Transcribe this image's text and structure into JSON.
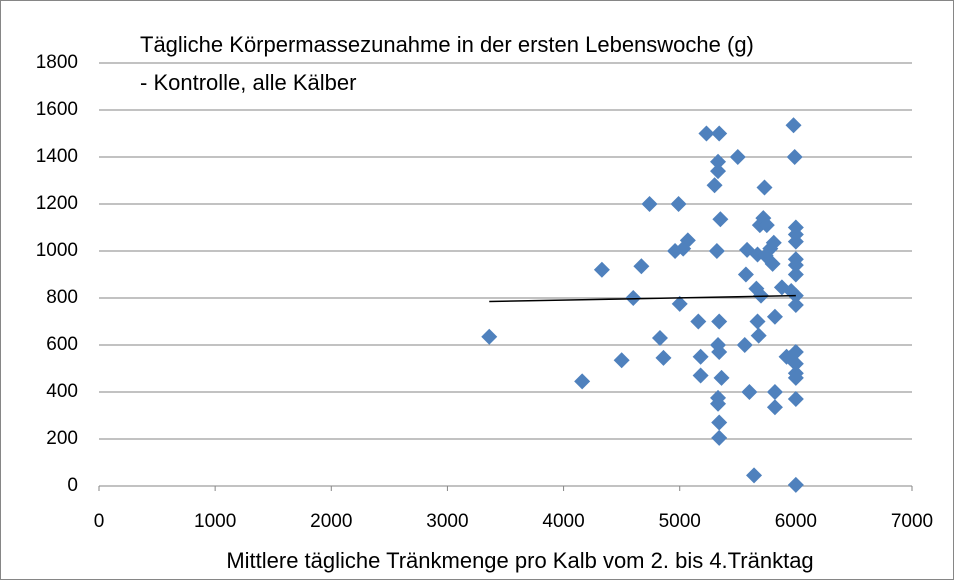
{
  "chart_data": {
    "type": "scatter",
    "title": "Tägliche Körpermassezunahme in der ersten Lebenswoche (g)",
    "subtitle": "- Kontrolle, alle Kälber",
    "x_label": "Mittlere tägliche Tränkmenge  pro Kalb vom 2. bis 4.Tränktag",
    "xlim": [
      0,
      7000
    ],
    "xticks": [
      0,
      1000,
      2000,
      3000,
      4000,
      5000,
      6000,
      7000
    ],
    "ylim": [
      0,
      1800
    ],
    "yticks": [
      0,
      200,
      400,
      600,
      800,
      1000,
      1200,
      1400,
      1600,
      1800
    ],
    "grid": true,
    "series": [
      {
        "color": "#4f81bd",
        "x": [
          3360,
          4160,
          4330,
          4500,
          4600,
          4670,
          4740,
          4830,
          4860,
          4960,
          4990,
          5000,
          5030,
          5070,
          5160,
          5180,
          5180,
          5230,
          5300,
          5320,
          5330,
          5330,
          5340,
          5350,
          5340,
          5330,
          5340,
          5330,
          5330,
          5340,
          5340,
          5360,
          5500,
          5560,
          5570,
          5580,
          5600,
          5640,
          5660,
          5670,
          5670,
          5680,
          5690,
          5700,
          5720,
          5730,
          5740,
          5750,
          5780,
          5800,
          5810,
          5820,
          5820,
          5820,
          5880,
          5920,
          5950,
          5960,
          5980,
          5990,
          6000,
          6000,
          6000,
          6000,
          6000,
          6000,
          6000,
          6000,
          6000,
          6000,
          6000,
          6000,
          6000,
          6000
        ],
        "values": [
          635,
          445,
          920,
          535,
          800,
          935,
          1200,
          630,
          545,
          1000,
          1200,
          775,
          1010,
          1045,
          700,
          550,
          470,
          1500,
          1280,
          1000,
          1380,
          1340,
          1500,
          1135,
          700,
          600,
          570,
          375,
          350,
          270,
          205,
          460,
          1400,
          600,
          900,
          1005,
          400,
          45,
          840,
          985,
          700,
          640,
          1110,
          810,
          1140,
          1270,
          980,
          1110,
          1010,
          945,
          1035,
          720,
          400,
          335,
          845,
          550,
          545,
          830,
          1535,
          1400,
          1100,
          1070,
          1040,
          965,
          940,
          900,
          810,
          770,
          570,
          520,
          480,
          460,
          370,
          5
        ]
      }
    ],
    "trendline": {
      "color": "#000000",
      "x": [
        3360,
        6000
      ],
      "y": [
        785,
        810
      ]
    }
  }
}
